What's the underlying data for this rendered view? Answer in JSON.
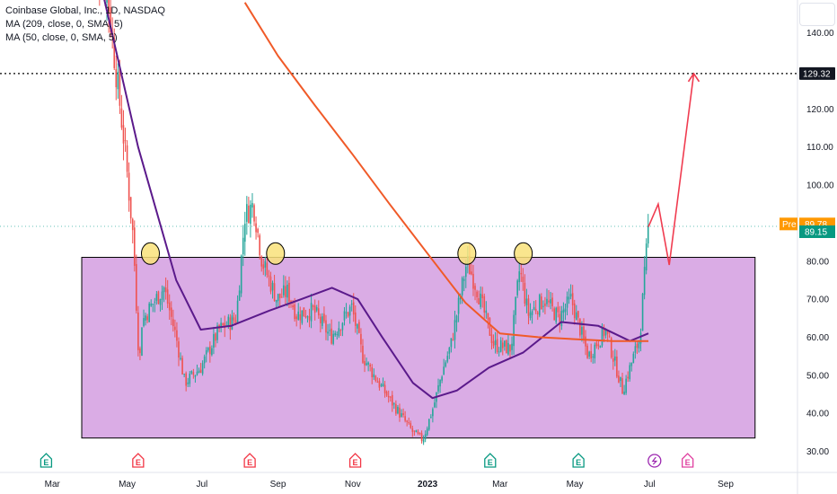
{
  "legend": {
    "title": "Coinbase Global, Inc., 1D, NASDAQ",
    "ma1": "MA (209, close, 0, SMA, 5)",
    "ma2": "MA (50, close, 0, SMA, 5)"
  },
  "colors": {
    "up": "#26a69a",
    "down": "#ef5350",
    "ma209": "#f7525f",
    "ma50": "#5b1a8b",
    "ma209_line": "#f05a28",
    "box_fill": "#d39ee0",
    "box_stroke": "#000000",
    "projection": "#f03c50",
    "marker_fill": "#f9e27a",
    "earnings_green": "#089981",
    "earnings_red": "#f23645",
    "earnings_pink": "#e040a0",
    "pre_tag": "#ff9800",
    "last_tag": "#089981"
  },
  "chart_data": {
    "type": "line",
    "title": "Coinbase Global, Inc., 1D, NASDAQ",
    "xlabel": "",
    "ylabel": "",
    "ylim": [
      28,
      145
    ],
    "y_ticks": [
      "140.00",
      "130.00",
      "120.00",
      "110.00",
      "100.00",
      "90.00",
      "80.00",
      "70.00",
      "60.00",
      "50.00",
      "40.00",
      "30.00"
    ],
    "x_ticks": [
      "Mar",
      "May",
      "Jul",
      "Sep",
      "Nov",
      "2023",
      "Mar",
      "May",
      "Jul",
      "Sep"
    ],
    "series": [
      {
        "key": "price",
        "x": [
          "2022-04-01",
          "2022-04-15",
          "2022-04-29",
          "2022-05-06",
          "2022-05-11",
          "2022-05-13",
          "2022-05-20",
          "2022-05-31",
          "2022-06-10",
          "2022-06-17",
          "2022-06-30",
          "2022-07-15",
          "2022-07-29",
          "2022-08-05",
          "2022-08-12",
          "2022-08-19",
          "2022-08-31",
          "2022-09-09",
          "2022-09-16",
          "2022-09-30",
          "2022-10-14",
          "2022-10-31",
          "2022-11-09",
          "2022-11-22",
          "2022-12-09",
          "2022-12-20",
          "2022-12-28",
          "2023-01-06",
          "2023-01-13",
          "2023-01-20",
          "2023-02-02",
          "2023-02-10",
          "2023-02-24",
          "2023-03-10",
          "2023-03-17",
          "2023-03-24",
          "2023-04-06",
          "2023-04-18",
          "2023-04-28",
          "2023-05-12",
          "2023-05-26",
          "2023-06-09",
          "2023-06-13",
          "2023-06-23",
          "2023-06-30"
        ],
        "values": [
          165,
          150,
          110,
          86,
          52,
          64,
          68,
          73,
          60,
          48,
          52,
          62,
          65,
          92,
          95,
          80,
          70,
          72,
          66,
          67,
          60,
          68,
          55,
          48,
          40,
          35,
          33,
          42,
          51,
          58,
          80,
          73,
          58,
          57,
          78,
          66,
          70,
          65,
          70,
          55,
          62,
          46,
          50,
          60,
          89
        ]
      },
      {
        "key": "ma50",
        "name": "MA (50, close, 0, SMA, 5)",
        "x": [
          "2022-04-08",
          "2022-05-10",
          "2022-06-10",
          "2022-06-30",
          "2022-07-25",
          "2022-08-25",
          "2022-09-20",
          "2022-10-15",
          "2022-11-05",
          "2022-11-25",
          "2022-12-20",
          "2023-01-05",
          "2023-01-25",
          "2023-02-20",
          "2023-03-20",
          "2023-04-20",
          "2023-05-20",
          "2023-06-15",
          "2023-06-30"
        ],
        "values": [
          155,
          110,
          75,
          62,
          63,
          67,
          70,
          73,
          70,
          60,
          48,
          44,
          46,
          52,
          56,
          64,
          63,
          59,
          61
        ]
      },
      {
        "key": "ma209",
        "name": "MA (209, close, 0, SMA, 5)",
        "x": [
          "2022-08-05",
          "2022-09-01",
          "2022-10-01",
          "2022-11-01",
          "2022-12-01",
          "2023-01-01",
          "2023-02-01",
          "2023-03-01",
          "2023-04-01",
          "2023-05-01",
          "2023-06-01",
          "2023-06-30"
        ],
        "values": [
          148,
          134,
          121,
          108,
          95,
          82,
          69,
          61,
          60,
          59.5,
          59,
          59
        ]
      }
    ],
    "support_zone": {
      "x_start": "2022-03-25",
      "x_end": "2023-09-25",
      "top": 81,
      "bottom": 33.5
    },
    "touch_markers": [
      {
        "date": "2022-05-20",
        "price": 82
      },
      {
        "date": "2022-08-30",
        "price": 82
      },
      {
        "date": "2023-02-02",
        "price": 82
      },
      {
        "date": "2023-03-20",
        "price": 82
      }
    ],
    "projection": {
      "x": [
        "2023-06-30",
        "2023-07-08",
        "2023-07-17",
        "2023-08-06"
      ],
      "values": [
        89,
        95,
        79,
        129.32
      ]
    },
    "target_level": {
      "value": 129.32,
      "label": "129.32"
    },
    "pre_market": {
      "label": "Pre",
      "value": "89.78"
    },
    "last_price": {
      "value": "89.15"
    },
    "earnings_markers": [
      {
        "date": "2022-02-24",
        "kind": "green"
      },
      {
        "date": "2022-05-10",
        "kind": "red"
      },
      {
        "date": "2022-08-09",
        "kind": "red"
      },
      {
        "date": "2022-11-03",
        "kind": "red"
      },
      {
        "date": "2023-02-21",
        "kind": "green"
      },
      {
        "date": "2023-05-04",
        "kind": "green"
      },
      {
        "date": "2023-07-05",
        "kind": "flash"
      },
      {
        "date": "2023-08-01",
        "kind": "pink"
      }
    ]
  }
}
